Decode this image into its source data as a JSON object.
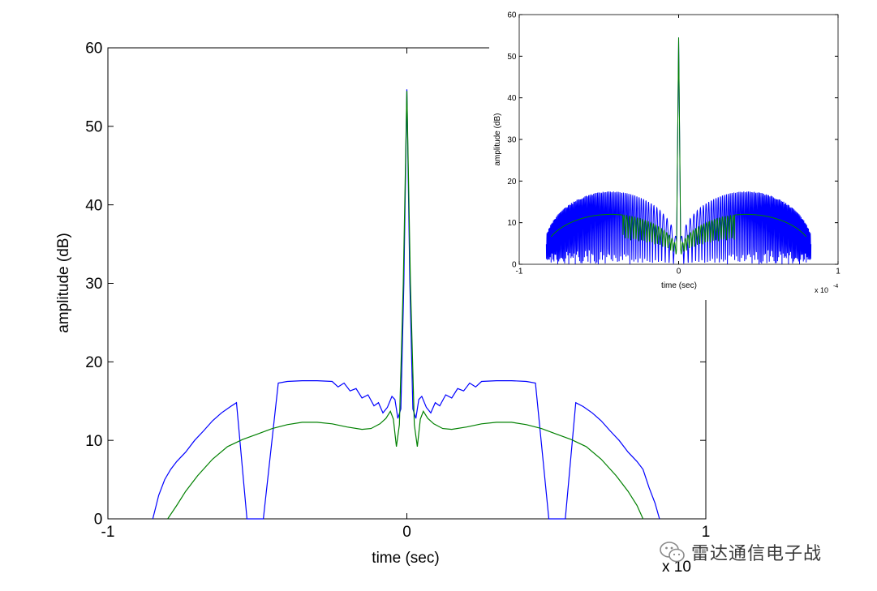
{
  "chart_data": [
    {
      "id": "main",
      "type": "line",
      "xlabel": "time (sec)",
      "ylabel": "amplitude (dB)",
      "xlim": [
        -1,
        1
      ],
      "ylim": [
        0,
        60
      ],
      "xticks": [
        -1,
        0,
        1
      ],
      "xtick_labels": [
        "-1",
        "0",
        "1"
      ],
      "yticks": [
        0,
        10,
        20,
        30,
        40,
        50,
        60
      ],
      "ytick_labels": [
        "0",
        "10",
        "20",
        "30",
        "40",
        "50",
        "60"
      ],
      "x_exponent_label": "x 10",
      "series": [
        {
          "color": "#0000ff",
          "points": [
            [
              -0.85,
              0
            ],
            [
              -0.84,
              1.5
            ],
            [
              -0.83,
              3
            ],
            [
              -0.81,
              5
            ],
            [
              -0.79,
              6.3
            ],
            [
              -0.77,
              7.3
            ],
            [
              -0.74,
              8.5
            ],
            [
              -0.71,
              10
            ],
            [
              -0.68,
              11.2
            ],
            [
              -0.65,
              12.5
            ],
            [
              -0.62,
              13.5
            ],
            [
              -0.59,
              14.3
            ],
            [
              -0.57,
              14.8
            ],
            [
              -0.535,
              0
            ],
            [
              -0.48,
              0
            ],
            [
              -0.43,
              17.3
            ],
            [
              -0.4,
              17.5
            ],
            [
              -0.35,
              17.6
            ],
            [
              -0.3,
              17.6
            ],
            [
              -0.25,
              17.5
            ],
            [
              -0.23,
              16.8
            ],
            [
              -0.21,
              17.3
            ],
            [
              -0.19,
              16.3
            ],
            [
              -0.17,
              16.6
            ],
            [
              -0.15,
              15.4
            ],
            [
              -0.13,
              15.8
            ],
            [
              -0.11,
              14.4
            ],
            [
              -0.095,
              14.8
            ],
            [
              -0.08,
              13.5
            ],
            [
              -0.065,
              14.2
            ],
            [
              -0.05,
              15.6
            ],
            [
              -0.04,
              15.2
            ],
            [
              -0.03,
              12.8
            ],
            [
              -0.02,
              14
            ],
            [
              -0.01,
              30
            ],
            [
              0,
              54.7
            ],
            [
              0.01,
              30
            ],
            [
              0.02,
              14
            ],
            [
              0.03,
              12.8
            ],
            [
              0.04,
              15.2
            ],
            [
              0.05,
              15.6
            ],
            [
              0.065,
              14.2
            ],
            [
              0.08,
              13.5
            ],
            [
              0.095,
              14.8
            ],
            [
              0.11,
              14.4
            ],
            [
              0.13,
              15.8
            ],
            [
              0.15,
              15.4
            ],
            [
              0.17,
              16.6
            ],
            [
              0.19,
              16.3
            ],
            [
              0.21,
              17.3
            ],
            [
              0.23,
              16.8
            ],
            [
              0.25,
              17.5
            ],
            [
              0.3,
              17.6
            ],
            [
              0.35,
              17.6
            ],
            [
              0.4,
              17.5
            ],
            [
              0.43,
              17.3
            ],
            [
              0.475,
              0
            ],
            [
              0.53,
              0
            ],
            [
              0.565,
              14.8
            ],
            [
              0.59,
              14.3
            ],
            [
              0.62,
              13.5
            ],
            [
              0.65,
              12.5
            ],
            [
              0.68,
              11.2
            ],
            [
              0.71,
              10
            ],
            [
              0.74,
              8.5
            ],
            [
              0.77,
              7.3
            ],
            [
              0.79,
              6.3
            ],
            [
              0.81,
              4
            ],
            [
              0.83,
              2
            ],
            [
              0.845,
              0
            ]
          ]
        },
        {
          "color": "#008000",
          "points": [
            [
              -0.8,
              0
            ],
            [
              -0.77,
              1.7
            ],
            [
              -0.74,
              3.5
            ],
            [
              -0.7,
              5.5
            ],
            [
              -0.65,
              7.6
            ],
            [
              -0.6,
              9.2
            ],
            [
              -0.55,
              10.1
            ],
            [
              -0.5,
              10.8
            ],
            [
              -0.45,
              11.5
            ],
            [
              -0.4,
              12
            ],
            [
              -0.35,
              12.3
            ],
            [
              -0.3,
              12.3
            ],
            [
              -0.25,
              12.1
            ],
            [
              -0.2,
              11.7
            ],
            [
              -0.15,
              11.4
            ],
            [
              -0.12,
              11.5
            ],
            [
              -0.09,
              12.1
            ],
            [
              -0.07,
              12.8
            ],
            [
              -0.055,
              13.7
            ],
            [
              -0.045,
              12.7
            ],
            [
              -0.035,
              9.2
            ],
            [
              -0.025,
              12
            ],
            [
              -0.012,
              30
            ],
            [
              0,
              54.5
            ],
            [
              0.012,
              30
            ],
            [
              0.025,
              12
            ],
            [
              0.035,
              9.2
            ],
            [
              0.045,
              12.7
            ],
            [
              0.055,
              13.7
            ],
            [
              0.07,
              12.8
            ],
            [
              0.09,
              12.1
            ],
            [
              0.12,
              11.5
            ],
            [
              0.15,
              11.4
            ],
            [
              0.2,
              11.7
            ],
            [
              0.25,
              12.1
            ],
            [
              0.3,
              12.3
            ],
            [
              0.35,
              12.3
            ],
            [
              0.4,
              12
            ],
            [
              0.45,
              11.5
            ],
            [
              0.5,
              10.8
            ],
            [
              0.55,
              10.1
            ],
            [
              0.6,
              9.2
            ],
            [
              0.65,
              7.6
            ],
            [
              0.7,
              5.5
            ],
            [
              0.74,
              3.5
            ],
            [
              0.77,
              1.7
            ],
            [
              0.79,
              0
            ]
          ]
        }
      ]
    },
    {
      "id": "inset",
      "type": "line",
      "xlabel": "time (sec)",
      "ylabel": "amplitude (dB)",
      "xlim": [
        -1,
        1
      ],
      "ylim": [
        0,
        60
      ],
      "xticks": [
        -1,
        0,
        1
      ],
      "xtick_labels": [
        "-1",
        "0",
        "1"
      ],
      "yticks": [
        0,
        10,
        20,
        30,
        40,
        50,
        60
      ],
      "ytick_labels": [
        "0",
        "10",
        "20",
        "30",
        "40",
        "50",
        "60"
      ],
      "x_exponent_label": "x 10",
      "x_exponent_power": "-4",
      "series": [
        {
          "color": "#0000ff",
          "style": "oscillating-sidelobes",
          "peak": 54.5,
          "sidelobe_level": 17.5,
          "extent": [
            -0.83,
            0.83
          ]
        },
        {
          "color": "#008000",
          "style": "smooth-envelope",
          "peak": 54.5,
          "envelope_level": 12,
          "extent": [
            -0.8,
            0.8
          ]
        }
      ]
    }
  ],
  "watermark": {
    "text": "雷达通信电子战",
    "icon": "wechat-icon"
  }
}
